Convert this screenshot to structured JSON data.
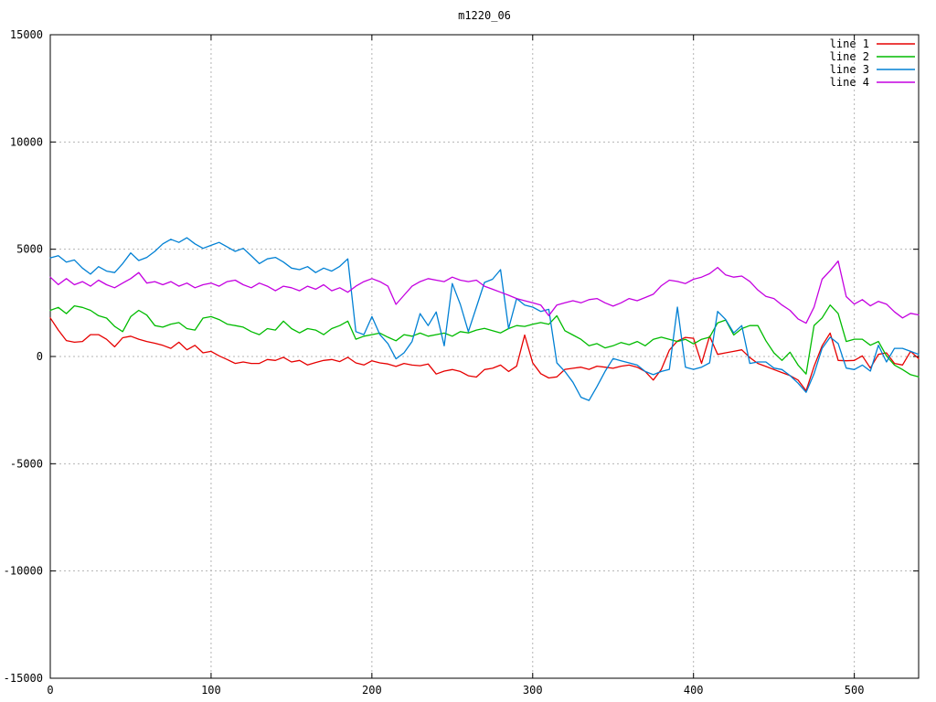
{
  "chart_data": {
    "type": "line",
    "title": "m1220_06",
    "xlabel": "",
    "ylabel": "",
    "xlim": [
      0,
      540
    ],
    "ylim": [
      -15000,
      15000
    ],
    "x_ticks": [
      0,
      100,
      200,
      300,
      400,
      500
    ],
    "y_ticks": [
      -15000,
      -10000,
      -5000,
      0,
      5000,
      10000,
      15000
    ],
    "grid": "dotted-gray-at-every-tick",
    "grid_color": "#b4b4b4",
    "axis_color": "#000000",
    "legend_position": "top-right-inside",
    "x": [
      0,
      5,
      10,
      15,
      20,
      25,
      30,
      35,
      40,
      45,
      50,
      55,
      60,
      65,
      70,
      75,
      80,
      85,
      90,
      95,
      100,
      105,
      110,
      115,
      120,
      125,
      130,
      135,
      140,
      145,
      150,
      155,
      160,
      165,
      170,
      175,
      180,
      185,
      190,
      195,
      200,
      205,
      210,
      215,
      220,
      225,
      230,
      235,
      240,
      245,
      250,
      255,
      260,
      265,
      270,
      275,
      280,
      285,
      290,
      295,
      300,
      305,
      310,
      315,
      320,
      325,
      330,
      335,
      340,
      345,
      350,
      355,
      360,
      365,
      370,
      375,
      380,
      385,
      390,
      395,
      400,
      405,
      410,
      415,
      420,
      425,
      430,
      435,
      440,
      445,
      450,
      455,
      460,
      465,
      470,
      475,
      480,
      485,
      490,
      495,
      500,
      505,
      510,
      515,
      520,
      525,
      530,
      535,
      540
    ],
    "series": [
      {
        "name": "line 1",
        "color": "#e60000",
        "values": [
          1800,
          1230,
          740,
          665,
          700,
          1020,
          1020,
          800,
          450,
          875,
          945,
          805,
          700,
          620,
          520,
          380,
          665,
          310,
          520,
          170,
          240,
          30,
          -140,
          -325,
          -255,
          -325,
          -325,
          -140,
          -185,
          -40,
          -255,
          -185,
          -395,
          -280,
          -185,
          -140,
          -240,
          -40,
          -300,
          -395,
          -200,
          -300,
          -350,
          -465,
          -325,
          -400,
          -430,
          -350,
          -820,
          -680,
          -610,
          -700,
          -900,
          -960,
          -610,
          -550,
          -400,
          -700,
          -450,
          1000,
          -300,
          -800,
          -1000,
          -950,
          -600,
          -550,
          -500,
          -600,
          -450,
          -500,
          -550,
          -450,
          -400,
          -500,
          -700,
          -1100,
          -600,
          300,
          720,
          890,
          850,
          -325,
          945,
          100,
          170,
          240,
          310,
          -50,
          -325,
          -465,
          -610,
          -750,
          -890,
          -1100,
          -1600,
          -465,
          500,
          1090,
          -185,
          -200,
          -185,
          30,
          -540,
          100,
          170,
          -325,
          -395,
          240,
          -100
        ]
      },
      {
        "name": "line 2",
        "color": "#00bb00",
        "values": [
          2150,
          2290,
          2000,
          2360,
          2290,
          2150,
          1900,
          1790,
          1400,
          1160,
          1860,
          2150,
          1930,
          1440,
          1370,
          1510,
          1580,
          1300,
          1230,
          1790,
          1860,
          1720,
          1510,
          1440,
          1370,
          1160,
          1020,
          1300,
          1230,
          1650,
          1300,
          1100,
          1300,
          1230,
          1020,
          1300,
          1440,
          1650,
          805,
          945,
          1020,
          1090,
          900,
          735,
          1020,
          945,
          1090,
          945,
          1020,
          1090,
          945,
          1160,
          1100,
          1230,
          1310,
          1200,
          1100,
          1300,
          1440,
          1400,
          1500,
          1580,
          1500,
          1900,
          1200,
          1000,
          800,
          500,
          600,
          400,
          500,
          650,
          550,
          700,
          500,
          800,
          900,
          800,
          700,
          800,
          590,
          800,
          900,
          1570,
          1700,
          1000,
          1300,
          1440,
          1440,
          735,
          170,
          -185,
          200,
          -400,
          -820,
          1445,
          1800,
          2400,
          2000,
          700,
          807,
          807,
          525,
          700,
          30,
          -400,
          -610,
          -850,
          -950
        ]
      },
      {
        "name": "line 3",
        "color": "#0080d4",
        "values": [
          4600,
          4700,
          4400,
          4500,
          4120,
          3840,
          4190,
          3980,
          3910,
          4330,
          4830,
          4475,
          4620,
          4900,
          5250,
          5465,
          5320,
          5535,
          5250,
          5040,
          5180,
          5320,
          5110,
          4900,
          5040,
          4690,
          4330,
          4550,
          4620,
          4400,
          4120,
          4050,
          4190,
          3910,
          4120,
          3980,
          4200,
          4550,
          1160,
          1020,
          1860,
          1020,
          600,
          -110,
          170,
          700,
          2000,
          1440,
          2075,
          500,
          3400,
          2430,
          1160,
          2300,
          3450,
          3600,
          4050,
          1300,
          2700,
          2400,
          2300,
          2100,
          2200,
          -300,
          -700,
          -1200,
          -1900,
          -2050,
          -1400,
          -700,
          -100,
          -200,
          -300,
          -400,
          -700,
          -850,
          -700,
          -600,
          2300,
          -500,
          -600,
          -500,
          -300,
          2100,
          1720,
          1100,
          1440,
          -325,
          -255,
          -255,
          -540,
          -610,
          -890,
          -1245,
          -1670,
          -800,
          380,
          900,
          600,
          -540,
          -610,
          -400,
          -680,
          525,
          -255,
          380,
          380,
          240,
          100
        ]
      },
      {
        "name": "line 4",
        "color": "#c400e0",
        "values": [
          3700,
          3350,
          3630,
          3345,
          3490,
          3275,
          3560,
          3345,
          3205,
          3420,
          3630,
          3910,
          3420,
          3490,
          3345,
          3490,
          3275,
          3420,
          3205,
          3345,
          3420,
          3275,
          3490,
          3560,
          3345,
          3205,
          3420,
          3275,
          3065,
          3275,
          3205,
          3065,
          3275,
          3135,
          3345,
          3065,
          3205,
          2995,
          3275,
          3490,
          3630,
          3490,
          3275,
          2430,
          2855,
          3275,
          3490,
          3630,
          3560,
          3490,
          3700,
          3560,
          3490,
          3560,
          3275,
          3135,
          2995,
          2855,
          2700,
          2600,
          2500,
          2400,
          1900,
          2400,
          2500,
          2600,
          2500,
          2650,
          2700,
          2500,
          2350,
          2500,
          2700,
          2600,
          2750,
          2900,
          3300,
          3560,
          3500,
          3400,
          3600,
          3700,
          3860,
          4150,
          3800,
          3700,
          3750,
          3500,
          3100,
          2800,
          2700,
          2400,
          2150,
          1750,
          1550,
          2300,
          3600,
          4000,
          4450,
          2790,
          2440,
          2650,
          2360,
          2570,
          2440,
          2080,
          1800,
          2010,
          1940
        ]
      }
    ]
  }
}
